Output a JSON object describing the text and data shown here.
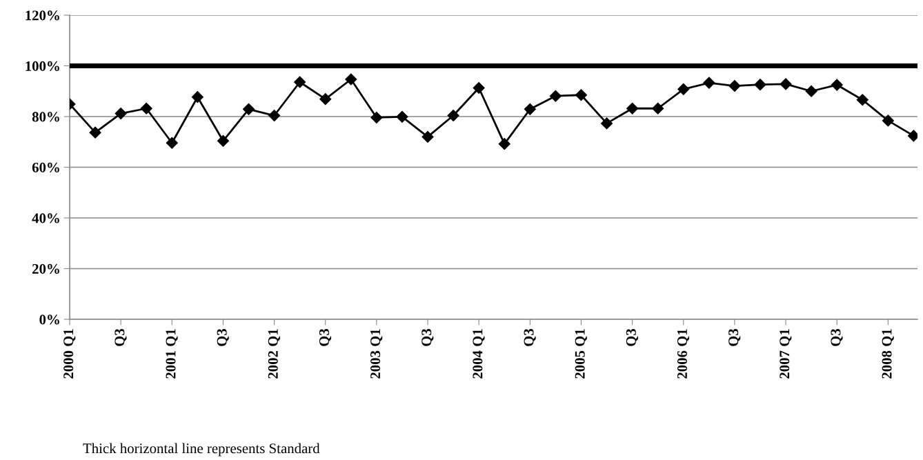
{
  "chart_data": {
    "type": "line",
    "categories": [
      "2000 Q1",
      null,
      "Q3",
      null,
      "2001 Q1",
      null,
      "Q3",
      null,
      "2002 Q1",
      null,
      "Q3",
      null,
      "2003 Q1",
      null,
      "Q3",
      null,
      "2004 Q1",
      null,
      "Q3",
      null,
      "2005 Q1",
      null,
      "Q3",
      null,
      "2006 Q1",
      null,
      "Q3",
      null,
      "2007 Q1",
      null,
      "Q3",
      null,
      "2008 Q1",
      null
    ],
    "series": [
      {
        "color": "#000000",
        "values": [
          84.9,
          73.7,
          81.2,
          83.2,
          69.6,
          87.7,
          70.4,
          82.9,
          80.4,
          93.6,
          86.9,
          94.7,
          79.6,
          79.9,
          72.0,
          80.4,
          91.3,
          69.2,
          82.9,
          88.1,
          88.5,
          77.3,
          83.2,
          83.2,
          90.8,
          93.3,
          92.1,
          92.6,
          92.8,
          90.0,
          92.5,
          86.6,
          78.4,
          72.4
        ]
      }
    ],
    "ylim": [
      0,
      120
    ],
    "yticks": [
      {
        "value": 0,
        "label": "0%"
      },
      {
        "value": 20,
        "label": "20%"
      },
      {
        "value": 40,
        "label": "40%"
      },
      {
        "value": 60,
        "label": "60%"
      },
      {
        "value": 80,
        "label": "80%"
      },
      {
        "value": 100,
        "label": "100%"
      },
      {
        "value": 120,
        "label": "120%"
      }
    ],
    "grid": "y",
    "marker": "diamond",
    "line_style": "solid",
    "legend": false,
    "ref_lines": [
      {
        "axis": "y",
        "value": 100,
        "color": "#000000",
        "line_style": "solid"
      }
    ],
    "annotations": [
      "Thick horizontal line represents Standard"
    ]
  }
}
